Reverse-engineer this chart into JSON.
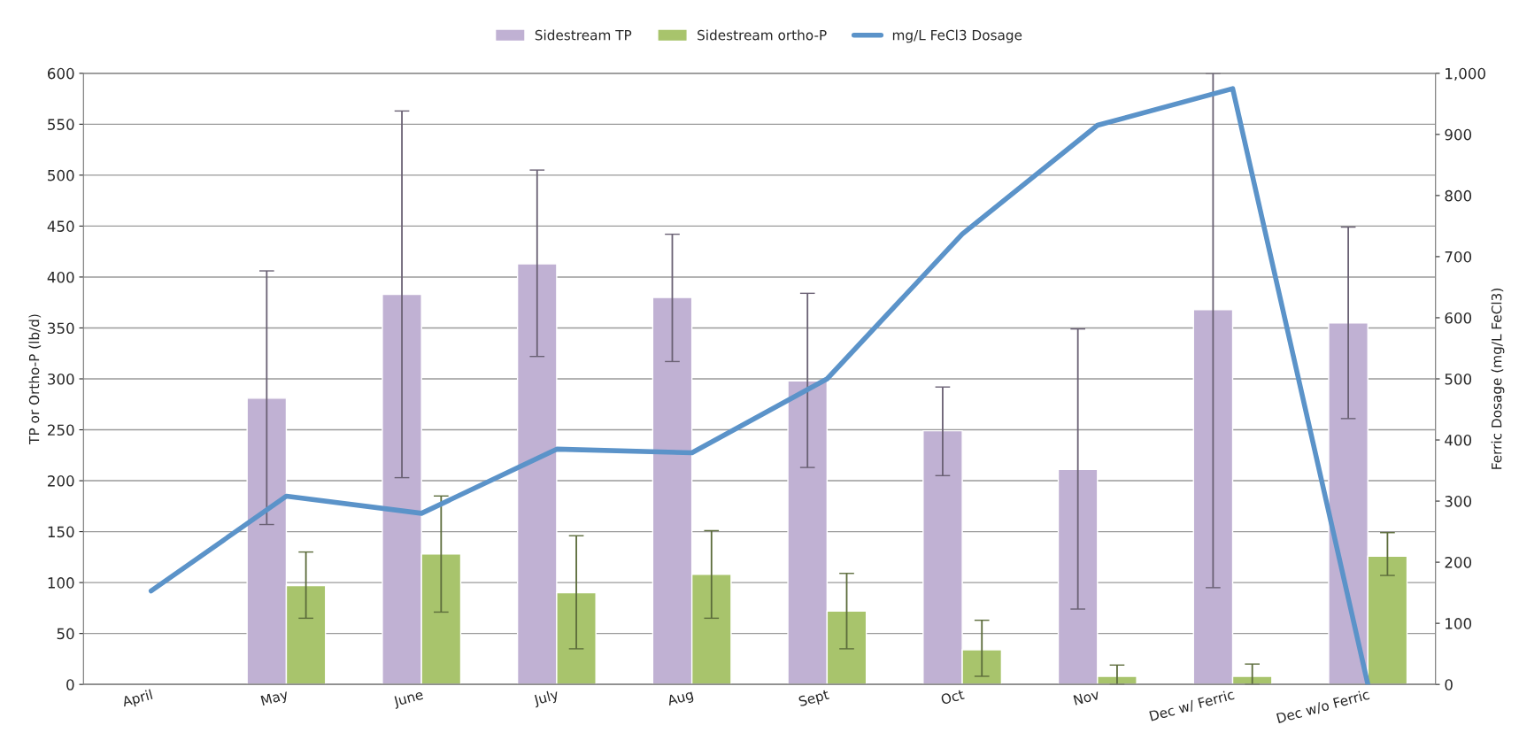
{
  "chart_data": {
    "type": "bar",
    "categories": [
      "April",
      "May",
      "June",
      "July",
      "Aug",
      "Sept",
      "Oct",
      "Nov",
      "Dec w/ Ferric",
      "Dec w/o Ferric"
    ],
    "ylabel": "TP or Ortho-P (lb/d)",
    "y2label": "Ferric Dosage (mg/L FeCl3)",
    "ylim": [
      0,
      600
    ],
    "yticks": [
      0,
      50,
      100,
      150,
      200,
      250,
      300,
      350,
      400,
      450,
      500,
      550,
      600
    ],
    "y2lim": [
      0,
      1000
    ],
    "y2ticks": [
      0,
      100,
      200,
      300,
      400,
      500,
      600,
      700,
      800,
      900,
      {
        "value": 1000,
        "label": "1,000"
      }
    ],
    "grid": "y",
    "legend": "top",
    "series": [
      {
        "name": "Sidestream TP",
        "color": "#c0b1d3",
        "values": [
          null,
          281,
          383,
          413,
          380,
          298,
          249,
          211,
          368,
          355
        ],
        "errors": [
          null,
          [
            157,
            406
          ],
          [
            203,
            563
          ],
          [
            322,
            505
          ],
          [
            317,
            442
          ],
          [
            213,
            384
          ],
          [
            205,
            292
          ],
          [
            74,
            349
          ],
          [
            95,
            600
          ],
          [
            261,
            449
          ]
        ]
      },
      {
        "name": "Sidestream ortho-P",
        "color": "#a8c46c",
        "values": [
          null,
          97,
          128,
          90,
          108,
          72,
          34,
          8,
          8,
          126
        ],
        "errors": [
          null,
          [
            65,
            130
          ],
          [
            71,
            185
          ],
          [
            35,
            146
          ],
          [
            65,
            151
          ],
          [
            35,
            109
          ],
          [
            8,
            63
          ],
          [
            0,
            19
          ],
          [
            0,
            20
          ],
          [
            107,
            149
          ]
        ]
      },
      {
        "name": "mg/L FeCl3 Dosage",
        "type": "line",
        "axis": "y2",
        "color": "#5b93c9",
        "values": [
          153,
          308,
          280,
          385,
          379,
          500,
          737,
          915,
          975,
          0
        ]
      }
    ]
  }
}
